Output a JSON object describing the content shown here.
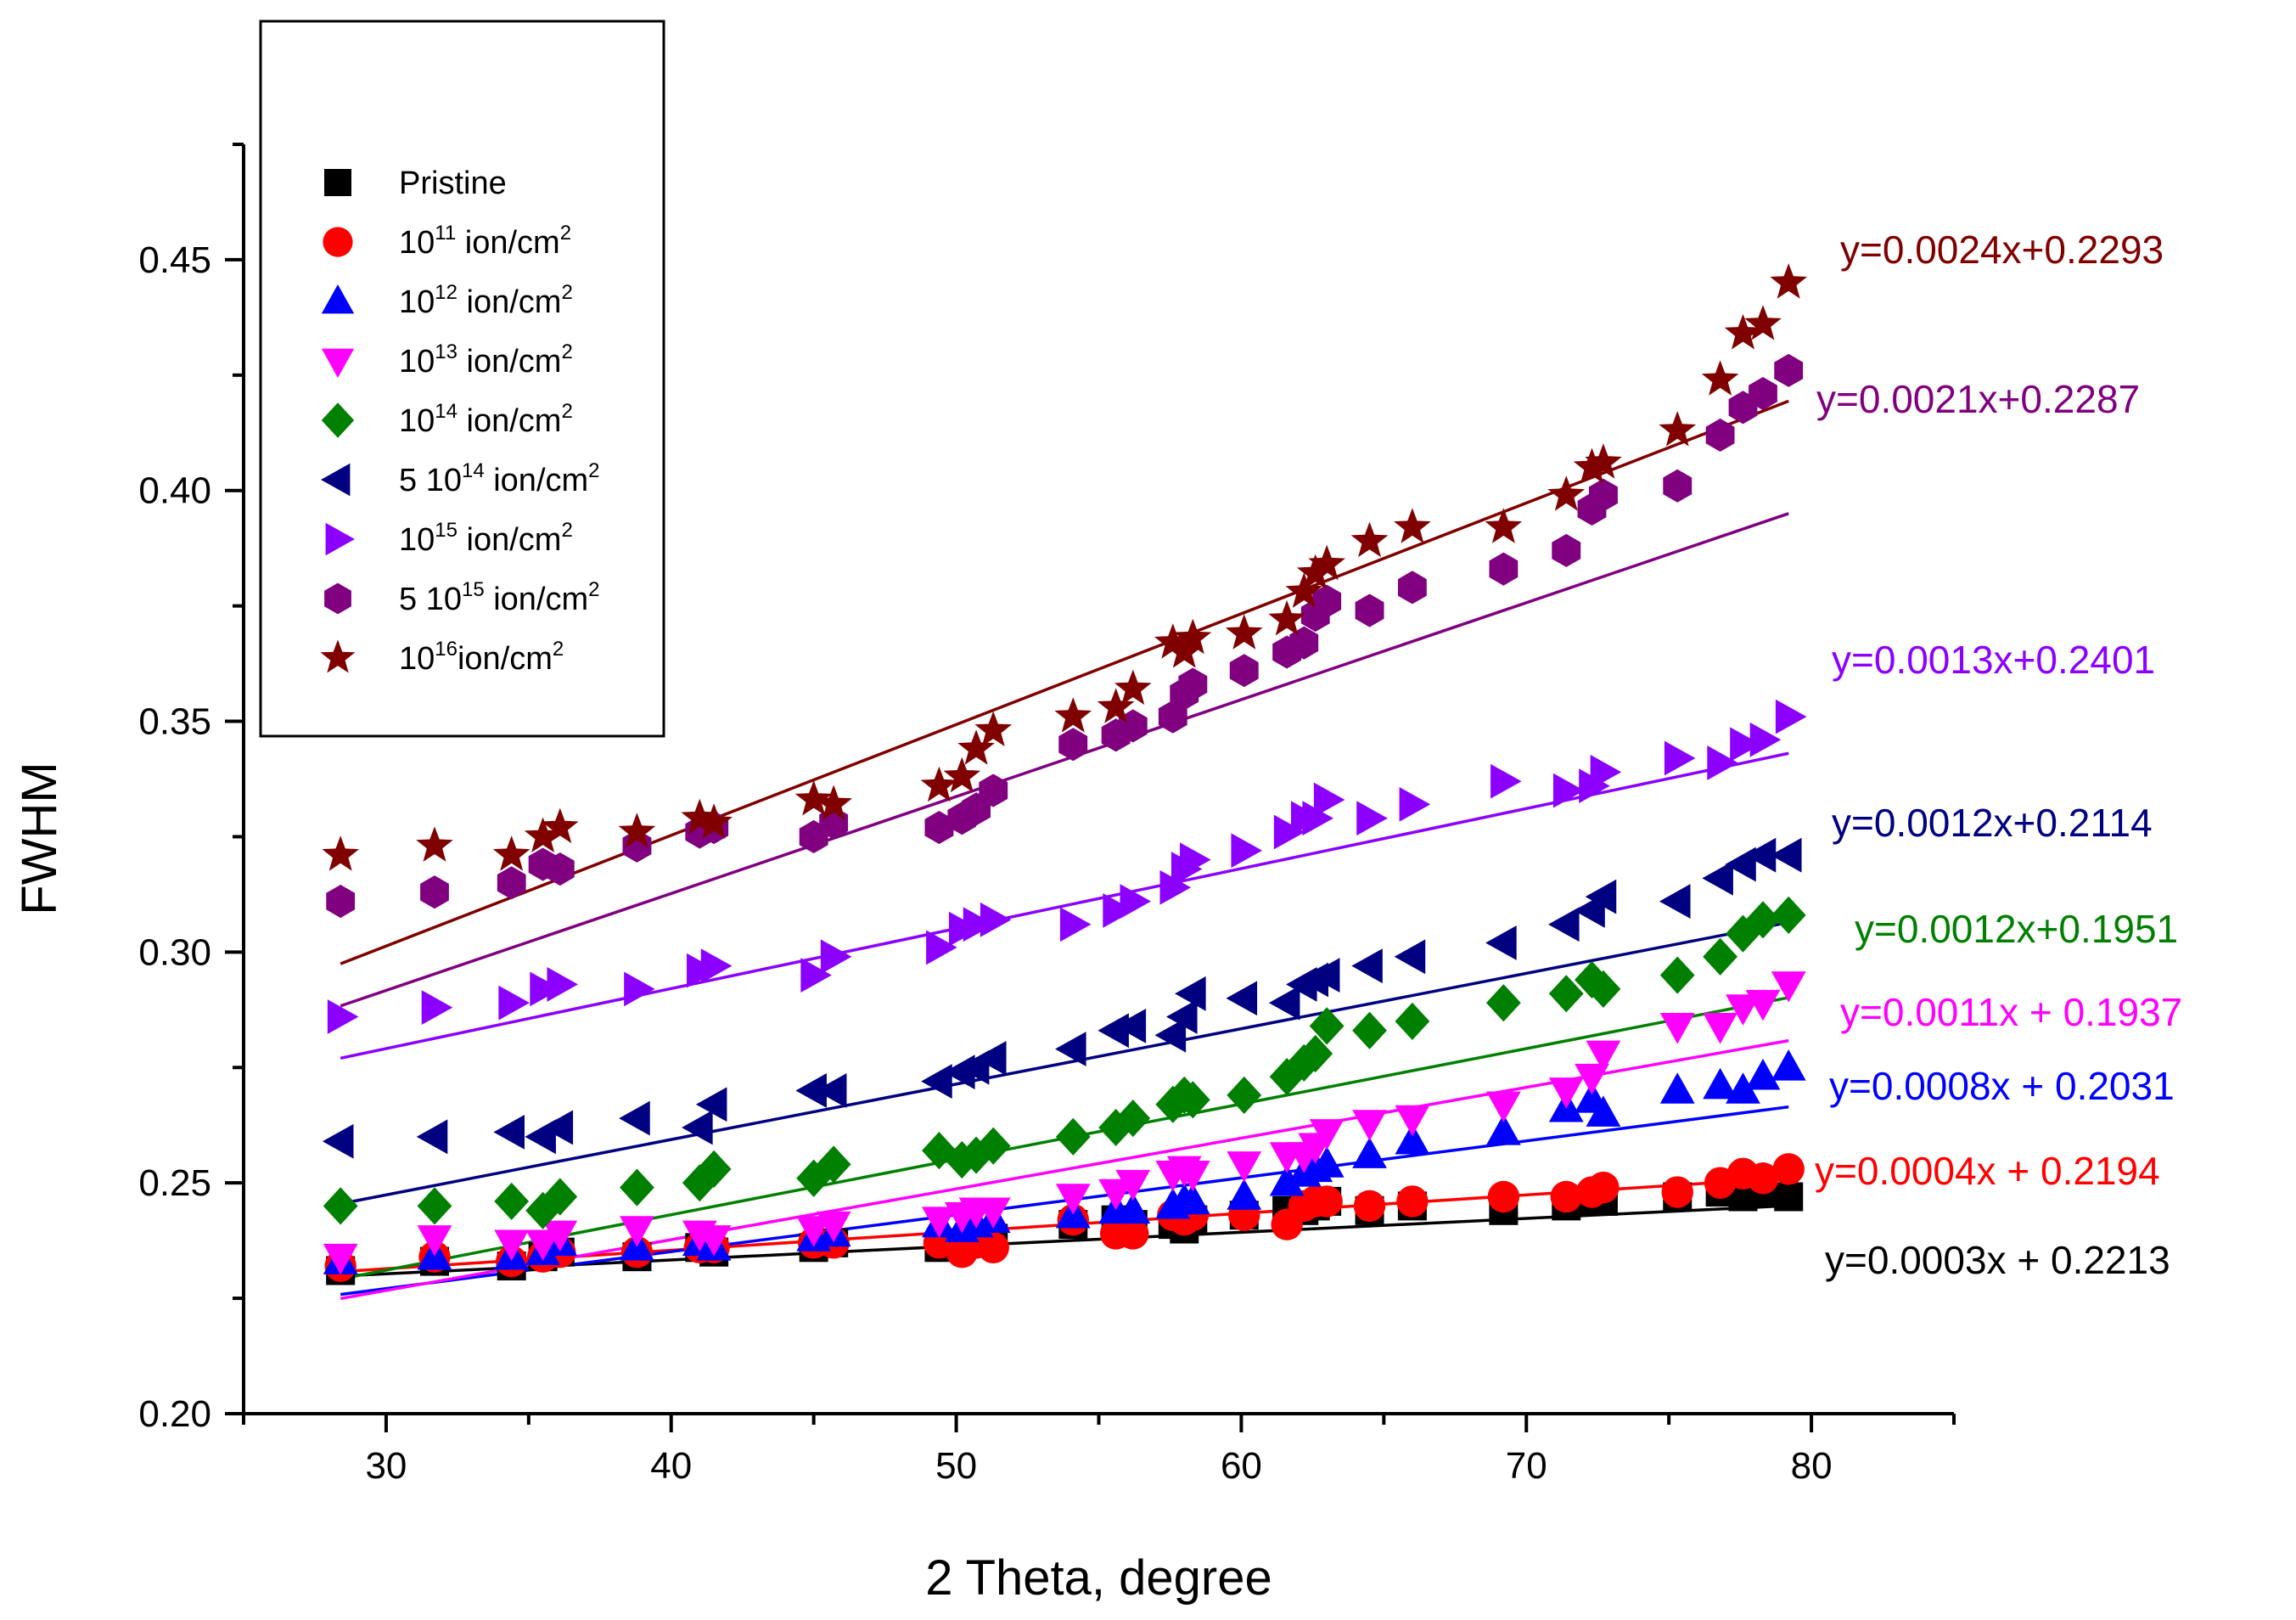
{
  "chart_data": {
    "type": "scatter",
    "title": "",
    "xlabel": "2 Theta, degree",
    "ylabel": "FWHM",
    "xlim": [
      25,
      85
    ],
    "ylim": [
      0.2,
      0.475
    ],
    "xticks": [
      30,
      40,
      50,
      60,
      70,
      80
    ],
    "xtick_labels": [
      "30",
      "40",
      "50",
      "60",
      "70",
      "80"
    ],
    "yticks": [
      0.2,
      0.25,
      0.3,
      0.35,
      0.4,
      0.45
    ],
    "ytick_labels": [
      "0.20",
      "0.25",
      "0.30",
      "0.35",
      "0.40",
      "0.45"
    ],
    "grid": false,
    "legend_position": "top-left",
    "x": [
      28.4,
      31.7,
      34.4,
      35.5,
      36.1,
      38.8,
      41.0,
      41.5,
      45.0,
      45.7,
      49.4,
      50.2,
      50.7,
      51.3,
      54.1,
      55.6,
      56.2,
      57.6,
      58.0,
      58.3,
      60.1,
      61.6,
      62.2,
      62.6,
      63.0,
      64.5,
      66.0,
      69.2,
      71.4,
      72.3,
      72.7,
      75.3,
      76.8,
      77.6,
      78.3,
      79.2
    ],
    "series": [
      {
        "name": "Pristine",
        "legend_main": "Pristine",
        "legend_sup": "",
        "legend_tail": "",
        "marker": "square",
        "color": "#000000",
        "fit": {
          "slope": 0.0003,
          "intercept": 0.2213,
          "x_range": [
            28.4,
            79.2
          ]
        },
        "equation": "y=0.0003x + 0.2213",
        "values": [
          0.231,
          0.233,
          0.232,
          0.234,
          0.235,
          0.234,
          0.236,
          0.235,
          0.236,
          0.237,
          0.236,
          0.237,
          0.238,
          0.238,
          0.241,
          0.242,
          0.241,
          0.241,
          0.24,
          0.242,
          0.243,
          0.244,
          0.244,
          0.245,
          0.246,
          0.244,
          0.245,
          0.244,
          0.245,
          0.246,
          0.246,
          0.247,
          0.248,
          0.247,
          0.248,
          0.247
        ]
      },
      {
        "name": "10^11 ion/cm^2",
        "legend_main": "10",
        "legend_sup": "11",
        "legend_tail": " ion/cm",
        "marker": "circle",
        "color": "#ff0000",
        "fit": {
          "slope": 0.0004,
          "intercept": 0.2194,
          "x_range": [
            28.4,
            79.2
          ]
        },
        "equation": "y=0.0004x + 0.2194",
        "values": [
          0.232,
          0.234,
          0.233,
          0.234,
          0.235,
          0.235,
          0.236,
          0.236,
          0.237,
          0.237,
          0.237,
          0.235,
          0.237,
          0.236,
          0.242,
          0.239,
          0.239,
          0.243,
          0.242,
          0.243,
          0.243,
          0.241,
          0.245,
          0.246,
          0.246,
          0.245,
          0.246,
          0.247,
          0.247,
          0.248,
          0.249,
          0.248,
          0.25,
          0.252,
          0.251,
          0.253
        ]
      },
      {
        "name": "10^12 ion/cm^2",
        "legend_main": "10",
        "legend_sup": "12",
        "legend_tail": " ion/cm",
        "marker": "triangle-up",
        "color": "#0000ff",
        "fit": {
          "slope": 0.0008,
          "intercept": 0.2031,
          "x_range": [
            28.4,
            79.2
          ]
        },
        "equation": "y=0.0008x + 0.2031",
        "values": [
          0.233,
          0.234,
          0.234,
          0.235,
          0.237,
          0.236,
          0.237,
          0.236,
          0.238,
          0.239,
          0.241,
          0.24,
          0.241,
          0.242,
          0.243,
          0.244,
          0.244,
          0.245,
          0.246,
          0.246,
          0.247,
          0.25,
          0.252,
          0.253,
          0.254,
          0.256,
          0.259,
          0.261,
          0.266,
          0.268,
          0.265,
          0.27,
          0.271,
          0.27,
          0.273,
          0.275
        ]
      },
      {
        "name": "10^13 ion/cm^2",
        "legend_main": "10",
        "legend_sup": "13",
        "legend_tail": " ion/cm",
        "marker": "triangle-down",
        "color": "#ff00ff",
        "fit": {
          "slope": 0.0011,
          "intercept": 0.1937,
          "x_range": [
            28.4,
            79.2
          ]
        },
        "equation": "y=0.0011x + 0.1937",
        "values": [
          0.234,
          0.238,
          0.237,
          0.237,
          0.239,
          0.24,
          0.239,
          0.238,
          0.24,
          0.241,
          0.242,
          0.243,
          0.244,
          0.244,
          0.247,
          0.248,
          0.25,
          0.252,
          0.253,
          0.252,
          0.254,
          0.256,
          0.256,
          0.258,
          0.261,
          0.263,
          0.264,
          0.267,
          0.27,
          0.273,
          0.278,
          0.284,
          0.284,
          0.288,
          0.289,
          0.293
        ]
      },
      {
        "name": "10^14 ion/cm^2",
        "legend_main": "10",
        "legend_sup": "14",
        "legend_tail": " ion/cm",
        "marker": "diamond",
        "color": "#008000",
        "fit": {
          "slope": 0.0012,
          "intercept": 0.1951,
          "x_range": [
            28.4,
            79.2
          ]
        },
        "equation": "y=0.0012x+0.1951",
        "values": [
          0.245,
          0.245,
          0.246,
          0.244,
          0.247,
          0.249,
          0.25,
          0.253,
          0.251,
          0.254,
          0.257,
          0.255,
          0.256,
          0.258,
          0.26,
          0.262,
          0.264,
          0.267,
          0.269,
          0.268,
          0.269,
          0.273,
          0.276,
          0.278,
          0.284,
          0.283,
          0.285,
          0.289,
          0.291,
          0.294,
          0.292,
          0.295,
          0.299,
          0.304,
          0.307,
          0.308
        ]
      },
      {
        "name": "5 10^14 ion/cm^2",
        "legend_main": "5 10",
        "legend_sup": "14",
        "legend_tail": " ion/cm",
        "marker": "triangle-left",
        "color": "#000080",
        "fit": {
          "slope": 0.0012,
          "intercept": 0.2114,
          "x_range": [
            28.4,
            79.2
          ]
        },
        "equation": "y=0.0012x+0.2114",
        "values": [
          0.259,
          0.26,
          0.261,
          0.26,
          0.262,
          0.264,
          0.262,
          0.267,
          0.27,
          0.27,
          0.272,
          0.274,
          0.275,
          0.277,
          0.279,
          0.283,
          0.284,
          0.282,
          0.286,
          0.291,
          0.29,
          0.289,
          0.293,
          0.294,
          0.295,
          0.297,
          0.299,
          0.302,
          0.306,
          0.309,
          0.312,
          0.311,
          0.316,
          0.319,
          0.321,
          0.321
        ]
      },
      {
        "name": "10^15 ion/cm^2",
        "legend_main": "10",
        "legend_sup": "15",
        "legend_tail": " ion/cm",
        "marker": "triangle-right",
        "color": "#8b00ff",
        "fit": {
          "slope": 0.0013,
          "intercept": 0.2401,
          "x_range": [
            28.4,
            79.2
          ]
        },
        "equation": "y=0.0013x+0.2401",
        "values": [
          0.286,
          0.288,
          0.289,
          0.292,
          0.293,
          0.292,
          0.296,
          0.297,
          0.295,
          0.299,
          0.301,
          0.305,
          0.306,
          0.307,
          0.306,
          0.309,
          0.311,
          0.314,
          0.318,
          0.32,
          0.322,
          0.326,
          0.329,
          0.329,
          0.333,
          0.329,
          0.332,
          0.337,
          0.335,
          0.336,
          0.339,
          0.342,
          0.341,
          0.345,
          0.346,
          0.351
        ]
      },
      {
        "name": "5 10^15 ion/cm^2",
        "legend_main": "5 10",
        "legend_sup": "15",
        "legend_tail": " ion/cm",
        "marker": "hexagon",
        "color": "#800080",
        "fit": {
          "slope": 0.0021,
          "intercept": 0.2287,
          "x_range": [
            28.4,
            79.2
          ]
        },
        "equation": "y=0.0021x+0.2287",
        "values": [
          0.311,
          0.313,
          0.315,
          0.319,
          0.318,
          0.323,
          0.326,
          0.327,
          0.325,
          0.328,
          0.327,
          0.329,
          0.331,
          0.335,
          0.345,
          0.347,
          0.349,
          0.351,
          0.356,
          0.358,
          0.361,
          0.365,
          0.367,
          0.373,
          0.376,
          0.374,
          0.379,
          0.383,
          0.387,
          0.396,
          0.399,
          0.401,
          0.412,
          0.418,
          0.421,
          0.426
        ]
      },
      {
        "name": "10^16 ion/cm^2",
        "legend_main": "10",
        "legend_sup": "16",
        "legend_tail": "ion/cm",
        "marker": "star",
        "color": "#800000",
        "fit": {
          "slope": 0.0024,
          "intercept": 0.2293,
          "x_range": [
            28.4,
            79.2
          ]
        },
        "equation": "y=0.0024x+0.2293",
        "values": [
          0.321,
          0.323,
          0.321,
          0.325,
          0.327,
          0.326,
          0.329,
          0.328,
          0.333,
          0.332,
          0.336,
          0.338,
          0.344,
          0.348,
          0.351,
          0.353,
          0.357,
          0.367,
          0.365,
          0.368,
          0.369,
          0.372,
          0.378,
          0.382,
          0.384,
          0.389,
          0.392,
          0.392,
          0.399,
          0.405,
          0.406,
          0.413,
          0.424,
          0.434,
          0.436,
          0.445
        ]
      }
    ]
  }
}
